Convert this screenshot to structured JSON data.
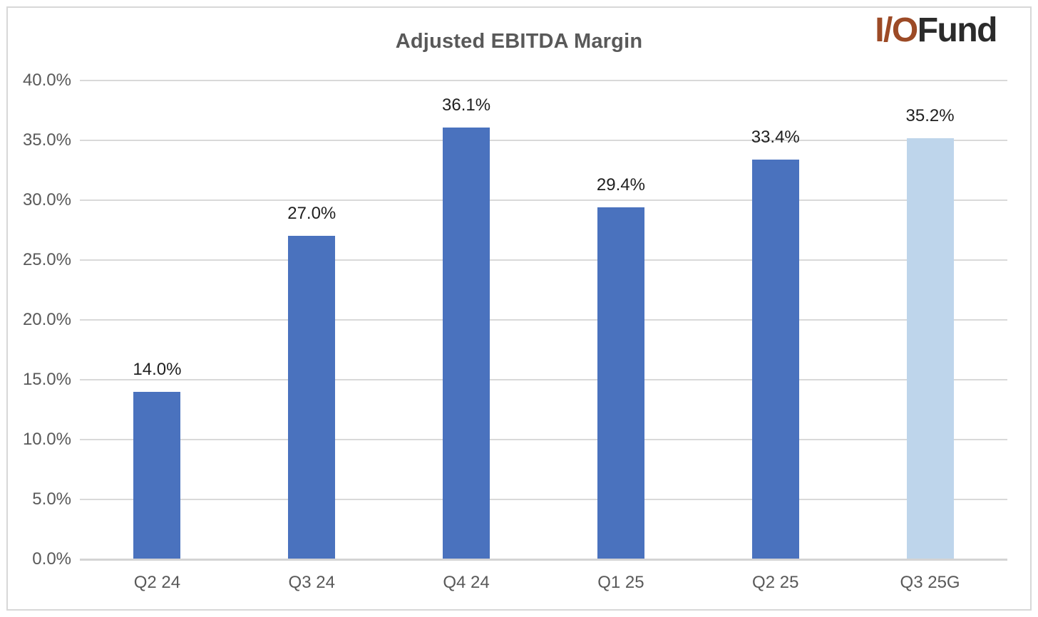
{
  "header": {
    "title": "Adjusted EBITDA Margin",
    "logo": {
      "primary": "I/O",
      "secondary": "Fund"
    }
  },
  "chart_data": {
    "type": "bar",
    "title": "Adjusted EBITDA Margin",
    "categories": [
      "Q2 24",
      "Q3 24",
      "Q4 24",
      "Q1 25",
      "Q2 25",
      "Q3 25G"
    ],
    "values": [
      14.0,
      27.0,
      36.1,
      29.4,
      33.4,
      35.2
    ],
    "value_labels": [
      "14.0%",
      "27.0%",
      "36.1%",
      "29.4%",
      "33.4%",
      "35.2%"
    ],
    "xlabel": "",
    "ylabel": "",
    "ylim": [
      0,
      40
    ],
    "ytick_values": [
      0,
      5,
      10,
      15,
      20,
      25,
      30,
      35,
      40
    ],
    "ytick_labels": [
      "0.0%",
      "5.0%",
      "10.0%",
      "15.0%",
      "20.0%",
      "25.0%",
      "30.0%",
      "35.0%",
      "40.0%"
    ],
    "grid": true,
    "legend": "none",
    "bar_colors": [
      "#4A72BE",
      "#4A72BE",
      "#4A72BE",
      "#4A72BE",
      "#4A72BE",
      "#BED5EB"
    ],
    "colors": {
      "bar": "#4A72BE",
      "guidance_bar": "#BED5EB",
      "gridline": "#D9D9D9",
      "axis_line": "#D4D4D4",
      "tick_label": "#595959",
      "data_label": "#1F1F1F",
      "title": "#595959",
      "logo_primary": "#9C4A26",
      "logo_secondary": "#2B2B2B",
      "border": "#D8D8D8"
    }
  }
}
